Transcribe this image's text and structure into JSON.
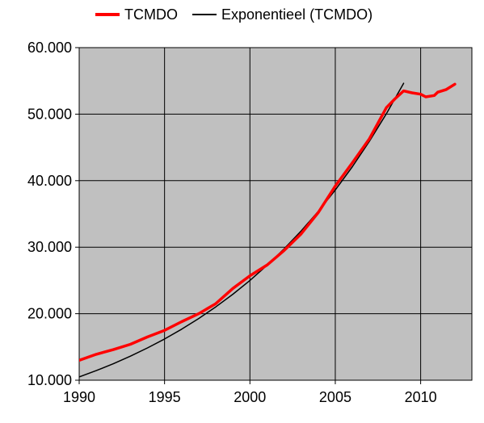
{
  "chart_data": {
    "type": "line",
    "title": "",
    "xlabel": "",
    "ylabel": "",
    "xlim": [
      1990,
      2013
    ],
    "ylim": [
      10000,
      60000
    ],
    "grid": true,
    "legend_position": "top",
    "plot_background": "#c0c0c0",
    "x_ticks": [
      1990,
      1995,
      2000,
      2005,
      2010
    ],
    "x_tick_labels": [
      "1990",
      "1995",
      "2000",
      "2005",
      "2010"
    ],
    "y_ticks": [
      10000,
      20000,
      30000,
      40000,
      50000,
      60000
    ],
    "y_tick_labels": [
      "10.000",
      "20.000",
      "30.000",
      "40.000",
      "50.000",
      "60.000"
    ],
    "series": [
      {
        "name": "TCMDO",
        "color": "#ff0000",
        "x": [
          1990,
          1991,
          1992,
          1993,
          1994,
          1995,
          1996,
          1997,
          1998,
          1999,
          2000,
          2001,
          2002,
          2003,
          2004,
          2005,
          2006,
          2007,
          2008,
          2008.5,
          2009,
          2009.5,
          2010,
          2010.3,
          2010.8,
          2011,
          2011.5,
          2012
        ],
        "y": [
          13000,
          13900,
          14600,
          15400,
          16500,
          17500,
          18800,
          20000,
          21500,
          23800,
          25700,
          27300,
          29500,
          32000,
          35200,
          39200,
          42700,
          46300,
          51000,
          52300,
          53500,
          53200,
          53000,
          52600,
          52800,
          53300,
          53700,
          54500
        ]
      },
      {
        "name": "Exponentieel (TCMDO)",
        "color": "#000000",
        "x": [
          1990,
          1991,
          1992,
          1993,
          1994,
          1995,
          1996,
          1997,
          1998,
          1999,
          2000,
          2001,
          2002,
          2003,
          2004,
          2005,
          2006,
          2007,
          2008,
          2009
        ],
        "y": [
          10500,
          11450,
          12480,
          13620,
          14850,
          16200,
          17670,
          19270,
          21020,
          22920,
          25000,
          27270,
          29740,
          32440,
          35380,
          38600,
          42100,
          45920,
          50080,
          54640
        ]
      }
    ]
  }
}
